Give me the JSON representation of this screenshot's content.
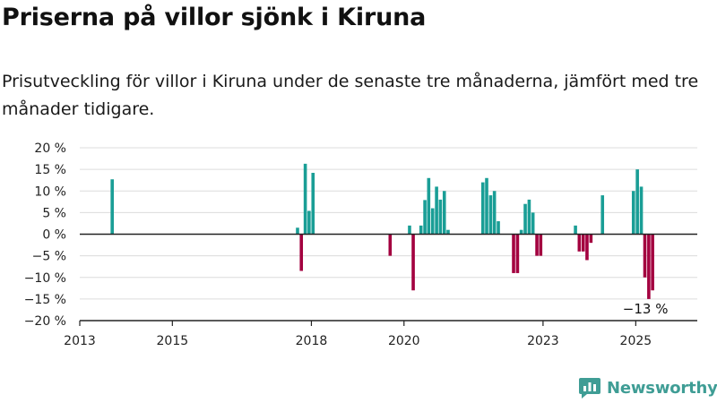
{
  "header": {
    "title": "Priserna på villor sjönk i Kiruna",
    "subtitle": "Prisutveckling för villor i Kiruna under de senaste tre månaderna, jämfört med tre månader tidigare."
  },
  "brand": {
    "name": "Newsworthy",
    "icon": "newsworthy-logo-icon",
    "color": "#3f9d95"
  },
  "colors": {
    "positive": "#1a9e96",
    "negative": "#a3003f",
    "grid": "#dcdcdc",
    "axis": "#222222"
  },
  "chart_data": {
    "type": "bar",
    "title": "Priserna på villor sjönk i Kiruna",
    "subtitle": "Prisutveckling för villor i Kiruna under de senaste tre månaderna, jämfört med tre månader tidigare.",
    "xlabel": "",
    "ylabel": "",
    "xlim": [
      "2013-01-01",
      "2026-05-01"
    ],
    "ylim": [
      -20,
      20
    ],
    "x_ticks": [
      {
        "date": "2013-01-01",
        "label": "2013"
      },
      {
        "date": "2015-01-01",
        "label": "2015"
      },
      {
        "date": "2018-01-01",
        "label": "2018"
      },
      {
        "date": "2020-01-01",
        "label": "2020"
      },
      {
        "date": "2023-01-01",
        "label": "2023"
      },
      {
        "date": "2025-01-01",
        "label": "2025"
      }
    ],
    "y_ticks": [
      {
        "value": 20,
        "label": "20 %"
      },
      {
        "value": 15,
        "label": "15 %"
      },
      {
        "value": 10,
        "label": "10 %"
      },
      {
        "value": 5,
        "label": "5 %"
      },
      {
        "value": 0,
        "label": "0 %"
      },
      {
        "value": -5,
        "label": "−5 %"
      },
      {
        "value": -10,
        "label": "−10 %"
      },
      {
        "value": -15,
        "label": "−15 %"
      },
      {
        "value": -20,
        "label": "−20 %"
      }
    ],
    "grid": true,
    "legend": "none",
    "series": [
      {
        "points": [
          {
            "date": "2013-09",
            "value": 12.7
          },
          {
            "date": "2017-09",
            "value": 1.5
          },
          {
            "date": "2017-10",
            "value": -8.5
          },
          {
            "date": "2017-11",
            "value": 16.3
          },
          {
            "date": "2017-12",
            "value": 5.4
          },
          {
            "date": "2018-01",
            "value": 14.2
          },
          {
            "date": "2019-09",
            "value": -5.0
          },
          {
            "date": "2020-02",
            "value": 2.0
          },
          {
            "date": "2020-03",
            "value": -13.0
          },
          {
            "date": "2020-05",
            "value": 2.0
          },
          {
            "date": "2020-06",
            "value": 7.9
          },
          {
            "date": "2020-07",
            "value": 13.0
          },
          {
            "date": "2020-08",
            "value": 6.0
          },
          {
            "date": "2020-09",
            "value": 11.0
          },
          {
            "date": "2020-10",
            "value": 8.0
          },
          {
            "date": "2020-11",
            "value": 10.0
          },
          {
            "date": "2020-12",
            "value": 1.0
          },
          {
            "date": "2021-09",
            "value": 12.0
          },
          {
            "date": "2021-10",
            "value": 13.0
          },
          {
            "date": "2021-11",
            "value": 9.0
          },
          {
            "date": "2021-12",
            "value": 10.0
          },
          {
            "date": "2022-01",
            "value": 3.0
          },
          {
            "date": "2022-05",
            "value": -9.0
          },
          {
            "date": "2022-06",
            "value": -9.0
          },
          {
            "date": "2022-07",
            "value": 1.0
          },
          {
            "date": "2022-08",
            "value": 7.0
          },
          {
            "date": "2022-09",
            "value": 8.0
          },
          {
            "date": "2022-10",
            "value": 5.0
          },
          {
            "date": "2022-11",
            "value": -5.0
          },
          {
            "date": "2022-12",
            "value": -5.0
          },
          {
            "date": "2023-09",
            "value": 2.0
          },
          {
            "date": "2023-10",
            "value": -4.0
          },
          {
            "date": "2023-11",
            "value": -4.0
          },
          {
            "date": "2023-12",
            "value": -6.0
          },
          {
            "date": "2024-01",
            "value": -2.0
          },
          {
            "date": "2024-04",
            "value": 9.0
          },
          {
            "date": "2024-12",
            "value": 10.0
          },
          {
            "date": "2025-01",
            "value": 15.0
          },
          {
            "date": "2025-02",
            "value": 11.0
          },
          {
            "date": "2025-03",
            "value": -10.0
          },
          {
            "date": "2025-04",
            "value": -15.0
          },
          {
            "date": "2025-05",
            "value": -13.0
          }
        ]
      }
    ],
    "annotations": [
      {
        "date": "2025-05",
        "value": -13.0,
        "label": "−13 %"
      }
    ]
  }
}
